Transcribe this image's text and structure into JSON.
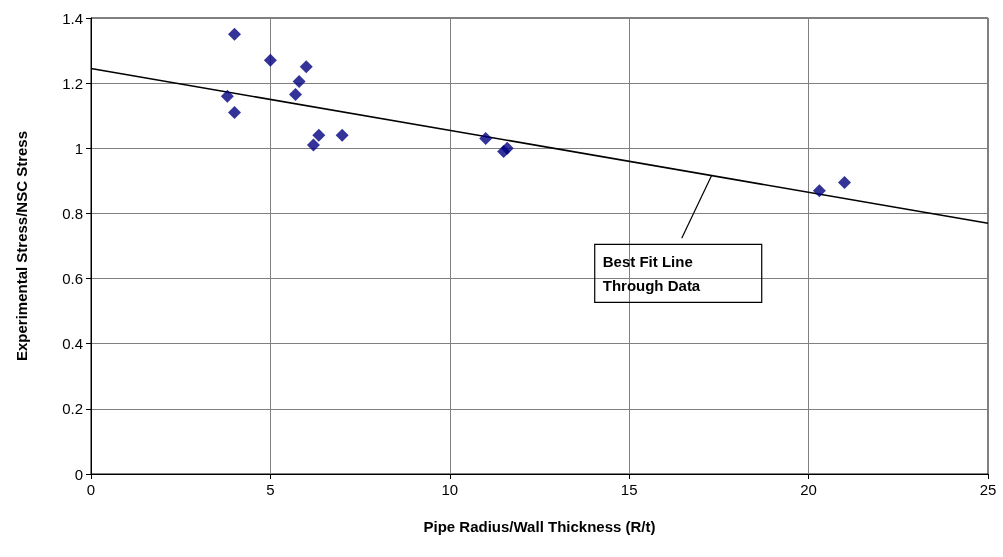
{
  "chart_data": {
    "type": "scatter",
    "xlabel": "Pipe Radius/Wall Thickness (R/t)",
    "ylabel": "Experimental Stress/NSC Stress",
    "xlim": [
      0,
      25
    ],
    "xticks": [
      0,
      5,
      10,
      15,
      20,
      25
    ],
    "ylim": [
      0,
      1.4
    ],
    "yticks": [
      0,
      0.2,
      0.4,
      0.6,
      0.8,
      1,
      1.2,
      1.4
    ],
    "grid": true,
    "marker": "diamond",
    "series": [
      {
        "color": "#000080",
        "x": [
          3.8,
          4,
          4,
          5,
          5.7,
          5.8,
          6,
          6.2,
          6.35,
          7,
          11,
          11.5,
          11.6,
          20.3,
          21
        ],
        "values": [
          1.16,
          1.35,
          1.11,
          1.27,
          1.165,
          1.205,
          1.25,
          1.01,
          1.04,
          1.04,
          1.03,
          0.99,
          1.0,
          0.87,
          0.895
        ]
      },
      {
        "type": "line",
        "color": "#000000",
        "marker": "none",
        "x": [
          0,
          25
        ],
        "values": [
          1.245,
          0.77
        ]
      }
    ],
    "annotations": [
      {
        "text": "Best Fit Line Through Data",
        "x": 17.3,
        "y": 0.917
      }
    ]
  }
}
